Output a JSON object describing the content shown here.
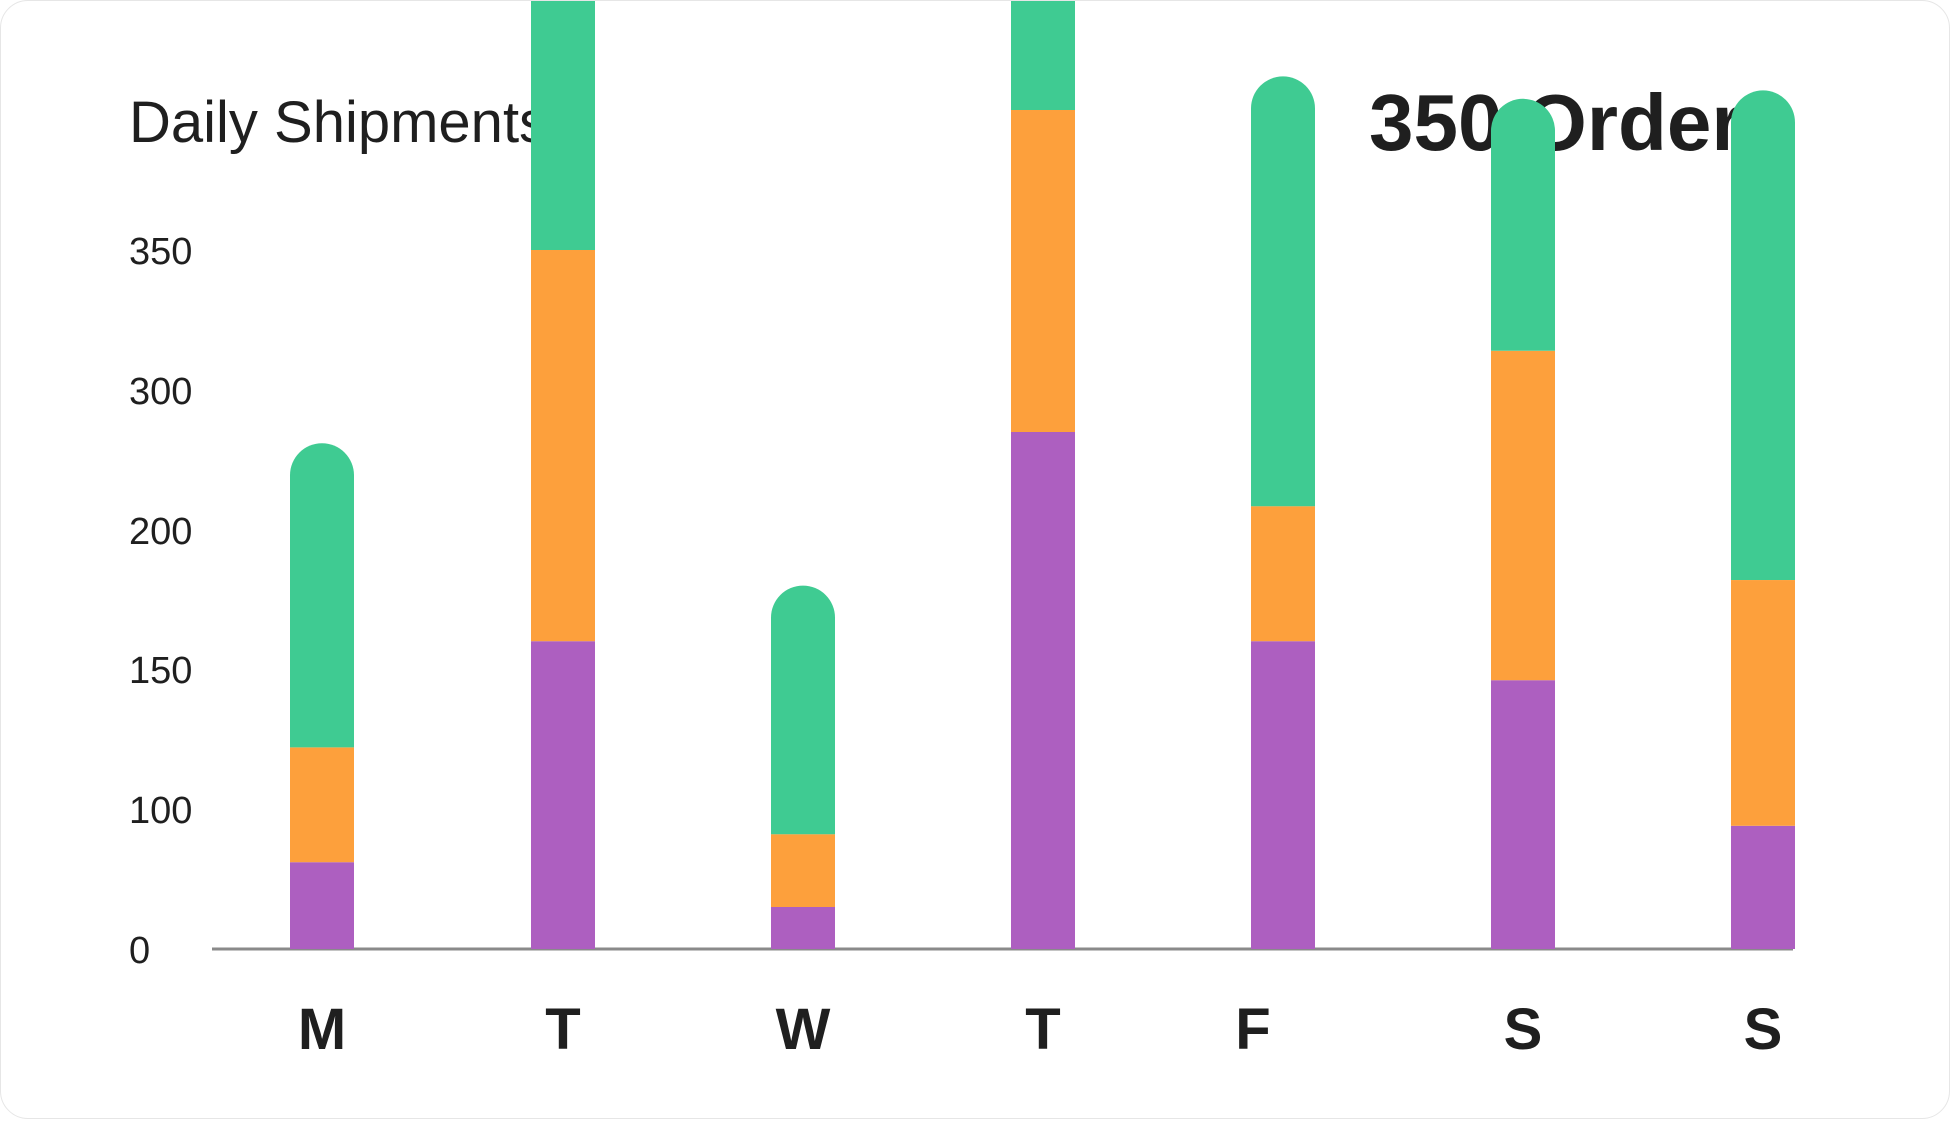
{
  "card": {
    "title": "Daily Shipments",
    "total": "350 Orders"
  },
  "chart_data": {
    "type": "bar",
    "stacked": true,
    "title": "Daily Shipments",
    "xlabel": "",
    "ylabel": "",
    "categories": [
      "M",
      "T",
      "W",
      "T",
      "F",
      "S",
      "S"
    ],
    "yticks": [
      "0",
      "100",
      "150",
      "200",
      "300",
      "350"
    ],
    "series": [
      {
        "color": "#ad5fc0",
        "values": [
          62,
          160,
          30,
          270,
          160,
          146,
          88
        ]
      },
      {
        "color": "#fda03c",
        "values": [
          60,
          190,
          52,
          130,
          57,
          168,
          94
        ]
      },
      {
        "color": "#3fcb92",
        "values": [
          140,
          120,
          98,
          130,
          195,
          90,
          225
        ]
      }
    ],
    "grid": false,
    "legend": "none"
  }
}
